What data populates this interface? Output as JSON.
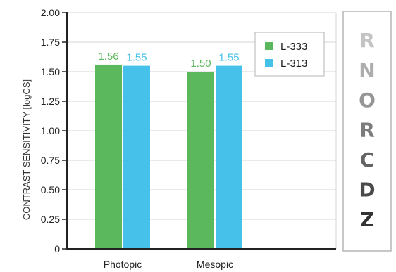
{
  "chart_data": {
    "type": "bar",
    "title": "",
    "xlabel": "",
    "ylabel": "CONTRAST SENSITIVITY [logCS]",
    "categories": [
      "Photopic",
      "Mesopic"
    ],
    "series": [
      {
        "name": "L-333",
        "color": "#5cb85c",
        "values": [
          1.56,
          1.5
        ],
        "labels": [
          "1.56",
          "1.50"
        ]
      },
      {
        "name": "L-313",
        "color": "#45c1ea",
        "values": [
          1.55,
          1.55
        ],
        "labels": [
          "1.55",
          "1.55"
        ]
      }
    ],
    "ylim": [
      0,
      2.0
    ],
    "yticks": [
      0,
      0.25,
      0.5,
      0.75,
      1.0,
      1.25,
      1.5,
      1.75,
      2.0
    ],
    "ytick_labels": [
      "0",
      "0.25",
      "0.50",
      "0.75",
      "1.00",
      "1.25",
      "1.50",
      "1.75",
      "2.00"
    ],
    "grid": true,
    "legend_position": "top-right"
  },
  "eye_chart": {
    "letters": [
      "R",
      "N",
      "O",
      "R",
      "C",
      "D",
      "Z"
    ],
    "colors": [
      "#c4c4c4",
      "#adadad",
      "#969696",
      "#7c7c7c",
      "#646464",
      "#4a4a4a",
      "#333333"
    ]
  }
}
